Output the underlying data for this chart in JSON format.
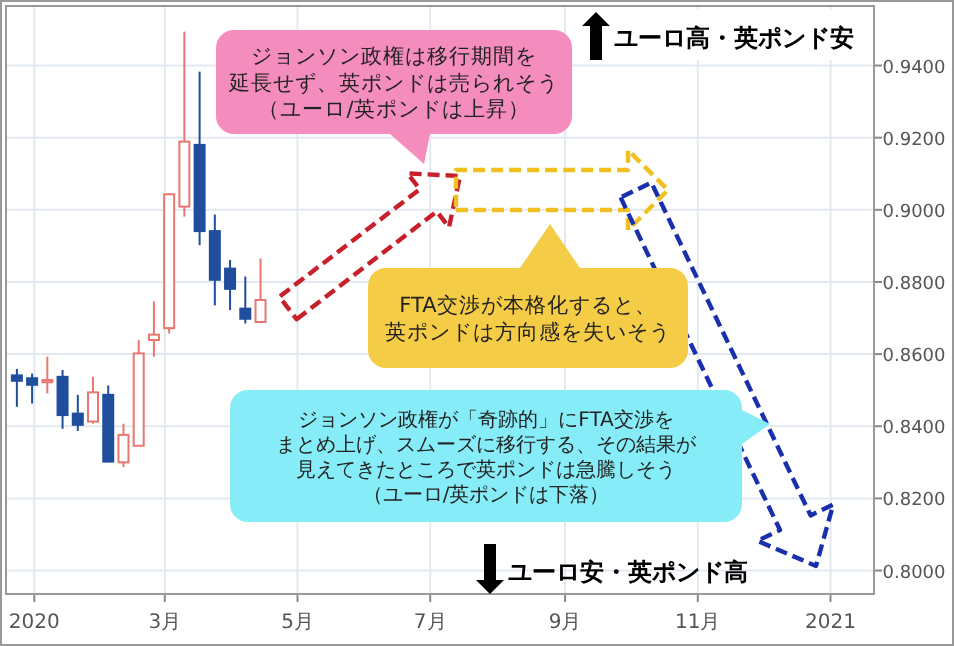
{
  "chart_data": {
    "type": "candlestick",
    "x": [
      "2019-12-24",
      "2019-12-31",
      "2020-01-07",
      "2020-01-14",
      "2020-01-21",
      "2020-01-28",
      "2020-02-04",
      "2020-02-11",
      "2020-02-18",
      "2020-02-25",
      "2020-03-03",
      "2020-03-10",
      "2020-03-17",
      "2020-03-24",
      "2020-03-31",
      "2020-04-07",
      "2020-04-14"
    ],
    "ohlc": [
      [
        0.8541,
        0.8559,
        0.8454,
        0.8526
      ],
      [
        0.8533,
        0.8546,
        0.8463,
        0.8515
      ],
      [
        0.8522,
        0.8593,
        0.8491,
        0.8528
      ],
      [
        0.8537,
        0.8556,
        0.8393,
        0.8431
      ],
      [
        0.8435,
        0.8487,
        0.8387,
        0.8404
      ],
      [
        0.8413,
        0.8537,
        0.8407,
        0.8494
      ],
      [
        0.8487,
        0.8513,
        0.8302,
        0.8302
      ],
      [
        0.83,
        0.8407,
        0.8287,
        0.8376
      ],
      [
        0.8346,
        0.8639,
        0.8346,
        0.8602
      ],
      [
        0.8639,
        0.8746,
        0.8593,
        0.8654
      ],
      [
        0.8672,
        0.9046,
        0.8657,
        0.9043
      ],
      [
        0.9009,
        0.9494,
        0.8981,
        0.9189
      ],
      [
        0.918,
        0.9383,
        0.8902,
        0.8941
      ],
      [
        0.8941,
        0.8987,
        0.8735,
        0.8806
      ],
      [
        0.8837,
        0.8861,
        0.8722,
        0.8781
      ],
      [
        0.8726,
        0.8815,
        0.8685,
        0.8698
      ],
      [
        0.8689,
        0.8865,
        0.8689,
        0.875
      ]
    ],
    "colors": [
      "#1f4e9c",
      "#1f4e9c",
      "#e8776f",
      "#1f4e9c",
      "#1f4e9c",
      "#e8776f",
      "#1f4e9c",
      "#e8776f",
      "#e8776f",
      "#e8776f",
      "#e8776f",
      "#e8776f",
      "#1f4e9c",
      "#1f4e9c",
      "#1f4e9c",
      "#1f4e9c",
      "#e8776f"
    ],
    "xlim": [
      "2019-12-19",
      "2021-01-21"
    ],
    "xticks": [
      {
        "value": "2020-01-01",
        "label": "2020"
      },
      {
        "value": "2020-03-01",
        "label": "3月"
      },
      {
        "value": "2020-05-01",
        "label": "5月"
      },
      {
        "value": "2020-07-01",
        "label": "7月"
      },
      {
        "value": "2020-09-01",
        "label": "9月"
      },
      {
        "value": "2020-11-01",
        "label": "11月"
      },
      {
        "value": "2021-01-01",
        "label": "2021"
      }
    ],
    "ylim": [
      0.7935,
      0.9565
    ],
    "yticks": [
      {
        "value": 0.8,
        "label": "0.8000"
      },
      {
        "value": 0.82,
        "label": "0.8200"
      },
      {
        "value": 0.84,
        "label": "0.8400"
      },
      {
        "value": 0.86,
        "label": "0.8600"
      },
      {
        "value": 0.88,
        "label": "0.8800"
      },
      {
        "value": 0.9,
        "label": "0.9000"
      },
      {
        "value": 0.92,
        "label": "0.9200"
      },
      {
        "value": 0.94,
        "label": "0.9400"
      }
    ],
    "grid": true,
    "annotations": [
      "ジョンソン政権は移行期間を延長せず、英ポンドは売られそう（ユーロ/英ポンドは上昇）",
      "FTA交渉が本格化すると、英ポンドは方向感を失いそう",
      "ジョンソン政権が「奇跡的」にFTA交渉をまとめ上げ、スムーズに移行する、その結果が見えてきたところで英ポンドは急騰しそう（ユーロ/英ポンドは下落）",
      "ユーロ高・英ポンド安",
      "ユーロ安・英ポンド高"
    ]
  }
}
